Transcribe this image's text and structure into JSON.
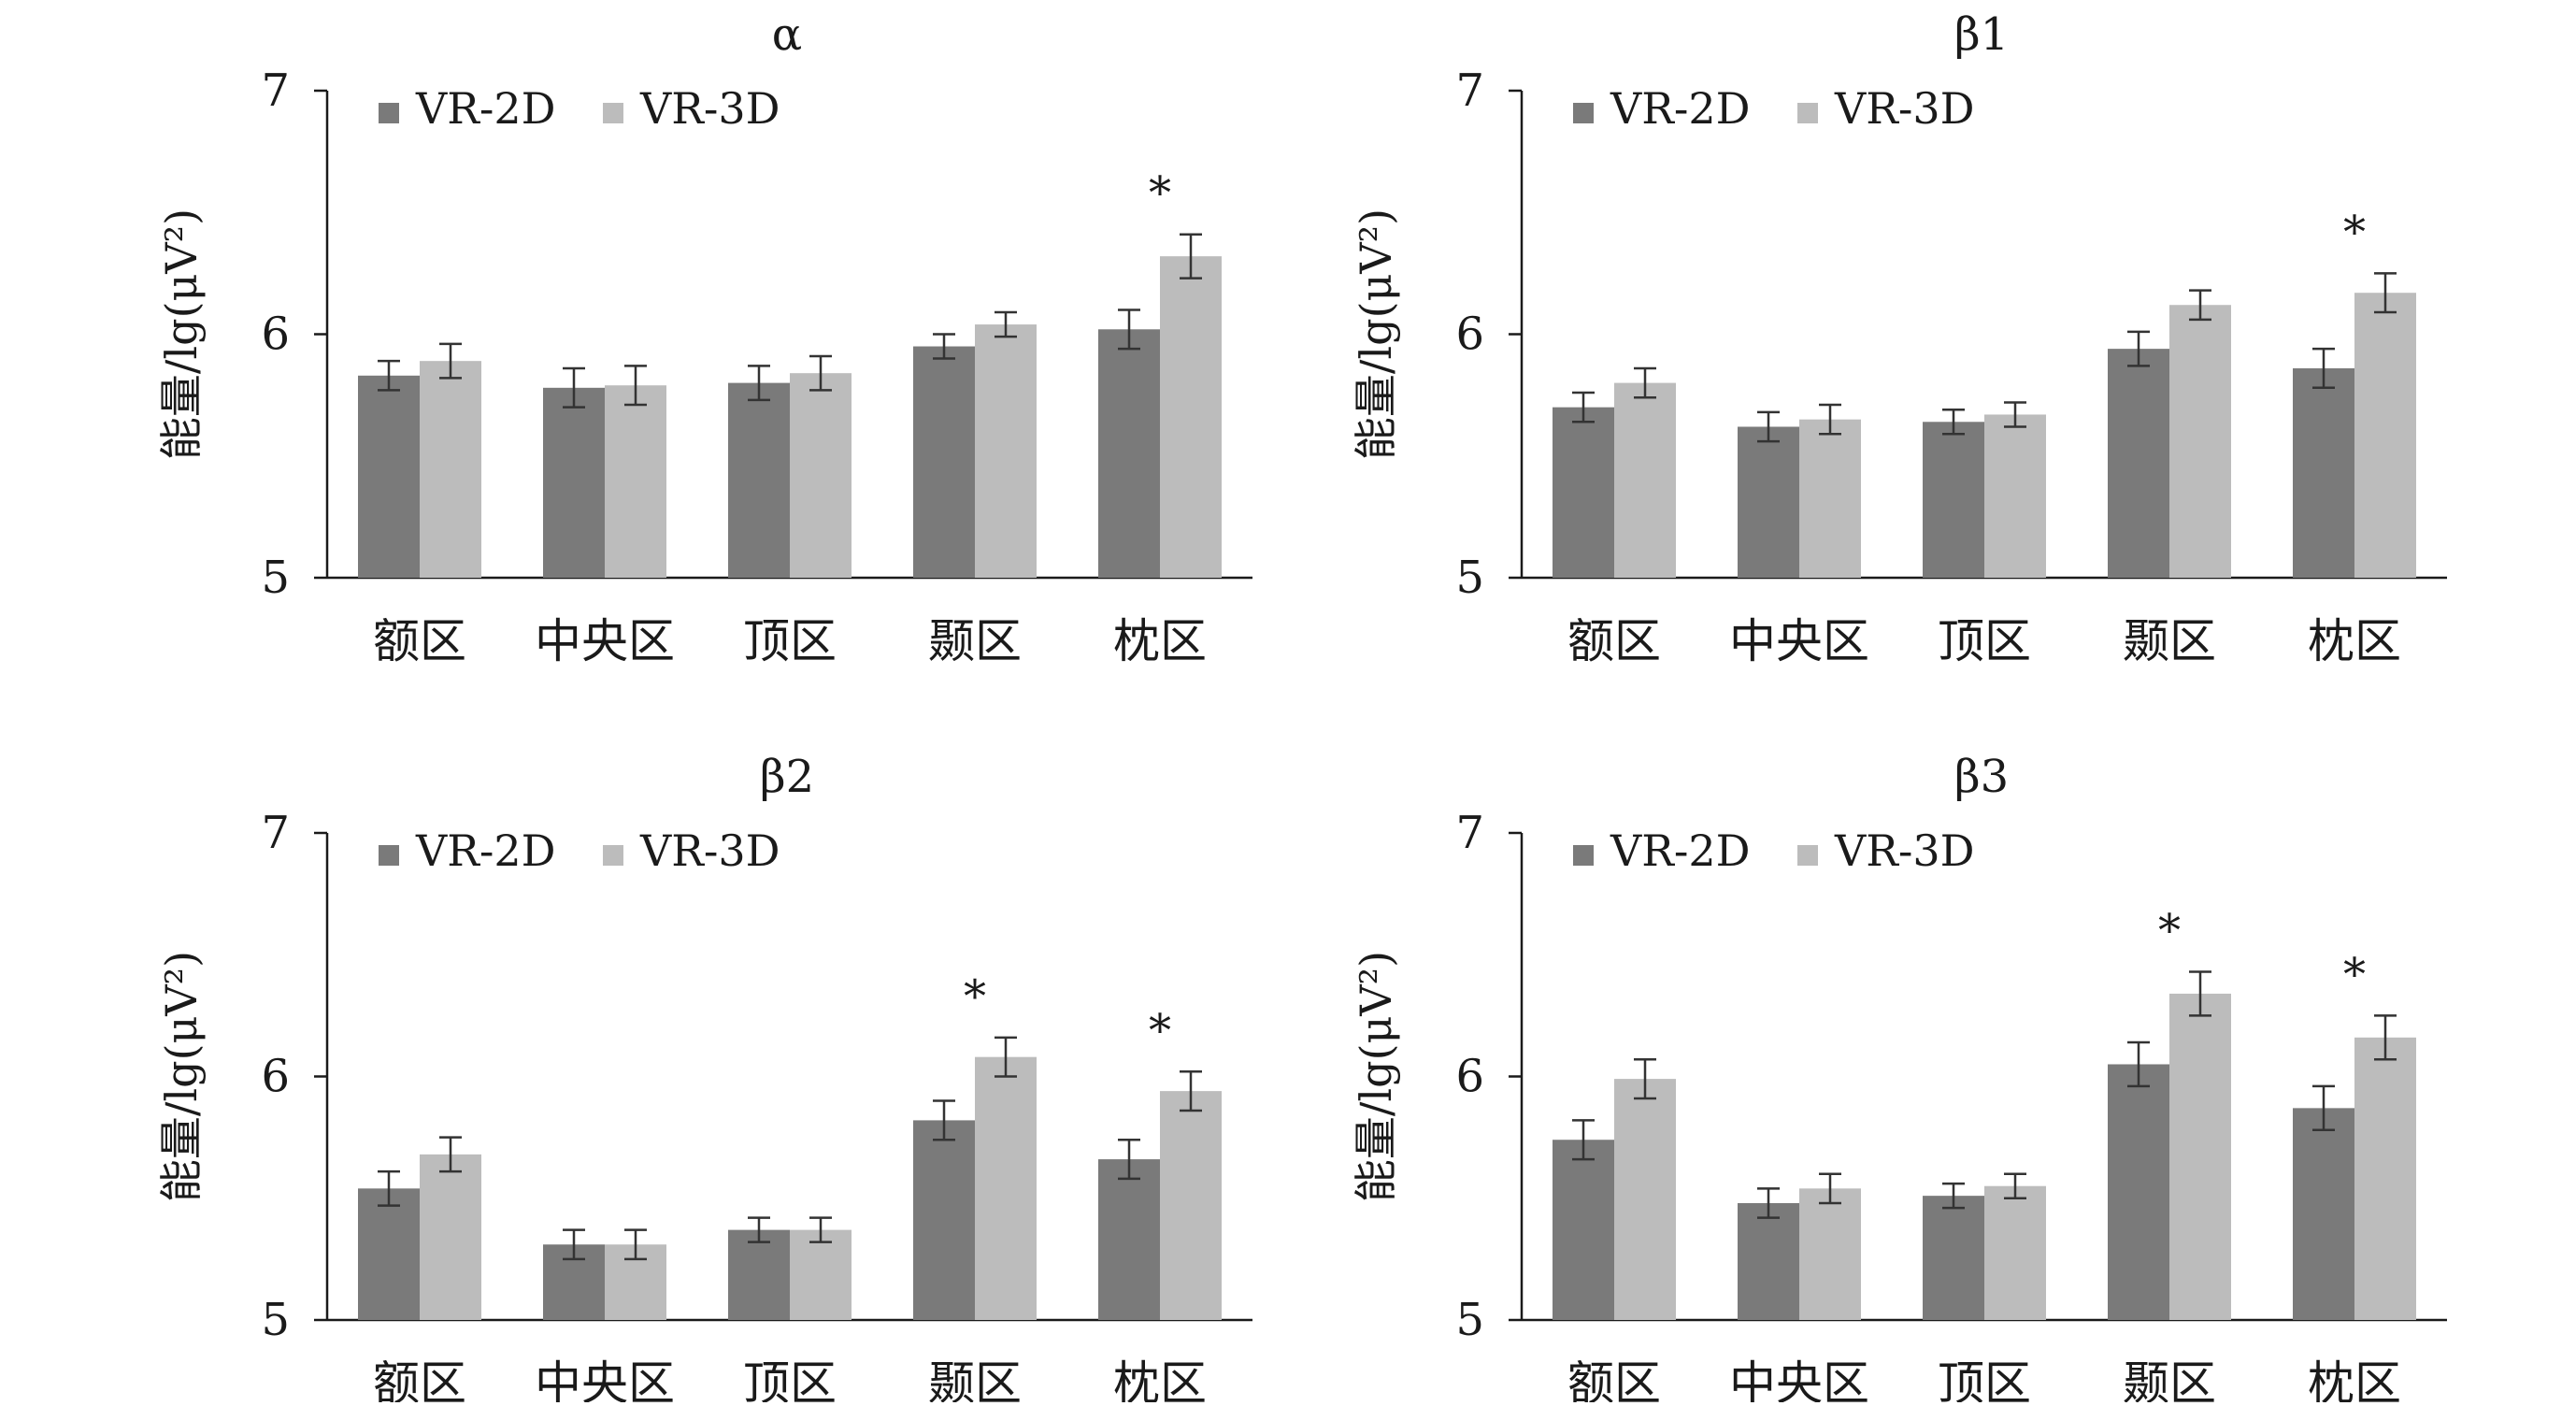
{
  "colors": {
    "vr2d": "#7a7a7a",
    "vr3d": "#bcbcbc",
    "axis": "#1a1a1a",
    "text": "#1a1a1a"
  },
  "common": {
    "ylabel": "能量/lg(μV²)",
    "yticks": [
      "5",
      "6",
      "7"
    ],
    "significance_mark": "*"
  },
  "chart_data": [
    {
      "type": "bar",
      "title": "α",
      "categories": [
        "额区",
        "中央区",
        "顶区",
        "颞区",
        "枕区"
      ],
      "ylim": [
        5,
        7
      ],
      "yticks": [
        5,
        6,
        7
      ],
      "legend": "top-left",
      "grid": false,
      "series": [
        {
          "name": "VR-2D",
          "values": [
            5.83,
            5.78,
            5.8,
            5.95,
            6.02
          ],
          "errors": [
            0.06,
            0.08,
            0.07,
            0.05,
            0.08
          ]
        },
        {
          "name": "VR-3D",
          "values": [
            5.89,
            5.79,
            5.84,
            6.04,
            6.32
          ],
          "errors": [
            0.07,
            0.08,
            0.07,
            0.05,
            0.09
          ]
        }
      ],
      "significant": [
        false,
        false,
        false,
        false,
        true
      ]
    },
    {
      "type": "bar",
      "title": "β1",
      "categories": [
        "额区",
        "中央区",
        "顶区",
        "颞区",
        "枕区"
      ],
      "ylim": [
        5,
        7
      ],
      "yticks": [
        5,
        6,
        7
      ],
      "legend": "top-left",
      "grid": false,
      "series": [
        {
          "name": "VR-2D",
          "values": [
            5.7,
            5.62,
            5.64,
            5.94,
            5.86
          ],
          "errors": [
            0.06,
            0.06,
            0.05,
            0.07,
            0.08
          ]
        },
        {
          "name": "VR-3D",
          "values": [
            5.8,
            5.65,
            5.67,
            6.12,
            6.17
          ],
          "errors": [
            0.06,
            0.06,
            0.05,
            0.06,
            0.08
          ]
        }
      ],
      "significant": [
        false,
        false,
        false,
        false,
        true
      ]
    },
    {
      "type": "bar",
      "title": "β2",
      "categories": [
        "额区",
        "中央区",
        "顶区",
        "颞区",
        "枕区"
      ],
      "ylim": [
        5,
        7
      ],
      "yticks": [
        5,
        6,
        7
      ],
      "legend": "top-left",
      "grid": false,
      "series": [
        {
          "name": "VR-2D",
          "values": [
            5.54,
            5.31,
            5.37,
            5.82,
            5.66
          ],
          "errors": [
            0.07,
            0.06,
            0.05,
            0.08,
            0.08
          ]
        },
        {
          "name": "VR-3D",
          "values": [
            5.68,
            5.31,
            5.37,
            6.08,
            5.94
          ],
          "errors": [
            0.07,
            0.06,
            0.05,
            0.08,
            0.08
          ]
        }
      ],
      "significant": [
        false,
        false,
        false,
        true,
        true
      ]
    },
    {
      "type": "bar",
      "title": "β3",
      "categories": [
        "额区",
        "中央区",
        "顶区",
        "颞区",
        "枕区"
      ],
      "ylim": [
        5,
        7
      ],
      "yticks": [
        5,
        6,
        7
      ],
      "legend": "top-left",
      "grid": false,
      "series": [
        {
          "name": "VR-2D",
          "values": [
            5.74,
            5.48,
            5.51,
            6.05,
            5.87
          ],
          "errors": [
            0.08,
            0.06,
            0.05,
            0.09,
            0.09
          ]
        },
        {
          "name": "VR-3D",
          "values": [
            5.99,
            5.54,
            5.55,
            6.34,
            6.16
          ],
          "errors": [
            0.08,
            0.06,
            0.05,
            0.09,
            0.09
          ]
        }
      ],
      "significant": [
        false,
        false,
        false,
        true,
        true
      ]
    }
  ]
}
